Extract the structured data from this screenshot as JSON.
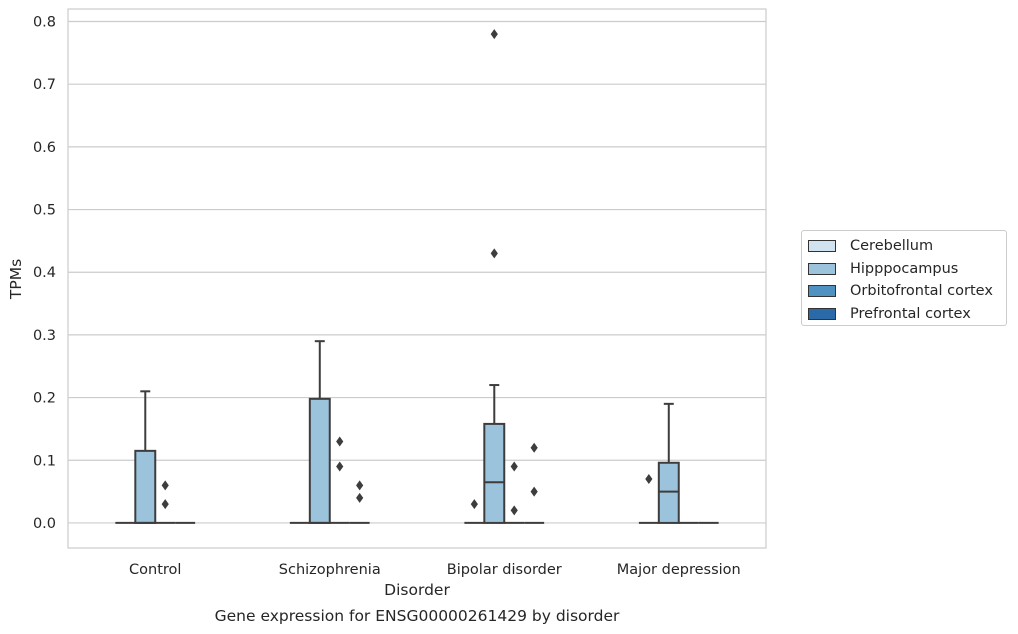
{
  "caption": "Gene expression for ENSG00000261429 by disorder",
  "colors": {
    "Cerebellum": "#d1e2f1",
    "Hipppocampus": "#9cc3dc",
    "Orbitofrontal cortex": "#4f91c0",
    "Prefrontal cortex": "#2b6aa9"
  },
  "chart_data": {
    "type": "box",
    "xlabel": "Disorder",
    "ylabel": "TPMs",
    "categories": [
      "Control",
      "Schizophrenia",
      "Bipolar disorder",
      "Major depression"
    ],
    "ylim": [
      -0.04,
      0.82
    ],
    "yticks": [
      0.0,
      0.1,
      0.2,
      0.3,
      0.4,
      0.5,
      0.6,
      0.7,
      0.8
    ],
    "grid": true,
    "legend_position": "right",
    "series": [
      {
        "name": "Cerebellum",
        "boxes": [
          {
            "q1": 0,
            "median": 0,
            "q3": 0,
            "whisker_low": 0,
            "whisker_high": 0,
            "outliers": []
          },
          {
            "q1": 0,
            "median": 0,
            "q3": 0,
            "whisker_low": 0,
            "whisker_high": 0,
            "outliers": []
          },
          {
            "q1": 0,
            "median": 0,
            "q3": 0,
            "whisker_low": 0,
            "whisker_high": 0,
            "outliers": [
              0.03
            ]
          },
          {
            "q1": 0,
            "median": 0,
            "q3": 0,
            "whisker_low": 0,
            "whisker_high": 0,
            "outliers": [
              0.07
            ]
          }
        ]
      },
      {
        "name": "Hipppocampus",
        "boxes": [
          {
            "q1": 0,
            "median": 0,
            "q3": 0.115,
            "whisker_low": 0,
            "whisker_high": 0.21,
            "outliers": []
          },
          {
            "q1": 0,
            "median": 0,
            "q3": 0.198,
            "whisker_low": 0,
            "whisker_high": 0.29,
            "outliers": []
          },
          {
            "q1": 0,
            "median": 0.065,
            "q3": 0.158,
            "whisker_low": 0,
            "whisker_high": 0.22,
            "outliers": [
              0.43,
              0.78
            ]
          },
          {
            "q1": 0,
            "median": 0.05,
            "q3": 0.096,
            "whisker_low": 0,
            "whisker_high": 0.19,
            "outliers": []
          }
        ]
      },
      {
        "name": "Orbitofrontal cortex",
        "boxes": [
          {
            "q1": 0,
            "median": 0,
            "q3": 0,
            "whisker_low": 0,
            "whisker_high": 0,
            "outliers": [
              0.03,
              0.06
            ]
          },
          {
            "q1": 0,
            "median": 0,
            "q3": 0,
            "whisker_low": 0,
            "whisker_high": 0,
            "outliers": [
              0.09,
              0.13
            ]
          },
          {
            "q1": 0,
            "median": 0,
            "q3": 0,
            "whisker_low": 0,
            "whisker_high": 0,
            "outliers": [
              0.02,
              0.09
            ]
          },
          {
            "q1": 0,
            "median": 0,
            "q3": 0,
            "whisker_low": 0,
            "whisker_high": 0,
            "outliers": []
          }
        ]
      },
      {
        "name": "Prefrontal cortex",
        "boxes": [
          {
            "q1": 0,
            "median": 0,
            "q3": 0,
            "whisker_low": 0,
            "whisker_high": 0,
            "outliers": []
          },
          {
            "q1": 0,
            "median": 0,
            "q3": 0,
            "whisker_low": 0,
            "whisker_high": 0,
            "outliers": [
              0.04,
              0.06
            ]
          },
          {
            "q1": 0,
            "median": 0,
            "q3": 0,
            "whisker_low": 0,
            "whisker_high": 0,
            "outliers": [
              0.05,
              0.12
            ]
          },
          {
            "q1": 0,
            "median": 0,
            "q3": 0,
            "whisker_low": 0,
            "whisker_high": 0,
            "outliers": []
          }
        ]
      }
    ]
  }
}
